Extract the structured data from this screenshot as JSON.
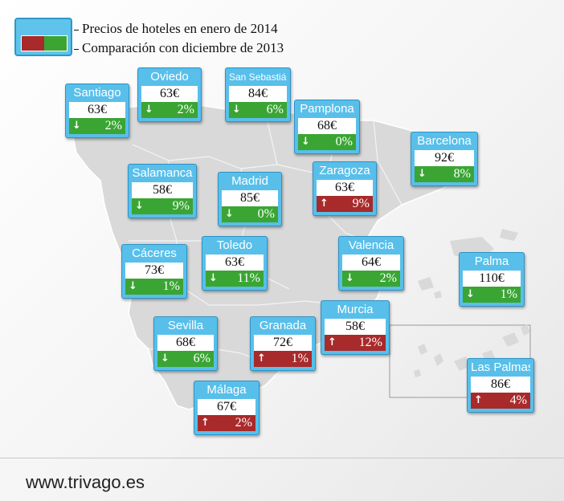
{
  "legend": {
    "line1": "Precios de hoteles en enero de 2014",
    "line2": "Comparación con diciembre de 2013",
    "colors": {
      "up": "#a82a2a",
      "down": "#3aa533"
    }
  },
  "cities": [
    {
      "name": "Santiago",
      "price": "63€",
      "direction": "down",
      "change": "2%"
    },
    {
      "name": "Oviedo",
      "price": "63€",
      "direction": "down",
      "change": "2%"
    },
    {
      "name": "San Sebastián",
      "price": "84€",
      "direction": "down",
      "change": "6%"
    },
    {
      "name": "Pamplona",
      "price": "68€",
      "direction": "down",
      "change": "0%"
    },
    {
      "name": "Barcelona",
      "price": "92€",
      "direction": "down",
      "change": "8%"
    },
    {
      "name": "Salamanca",
      "price": "58€",
      "direction": "down",
      "change": "9%"
    },
    {
      "name": "Madrid",
      "price": "85€",
      "direction": "down",
      "change": "0%"
    },
    {
      "name": "Zaragoza",
      "price": "63€",
      "direction": "up",
      "change": "9%"
    },
    {
      "name": "Cáceres",
      "price": "73€",
      "direction": "down",
      "change": "1%"
    },
    {
      "name": "Toledo",
      "price": "63€",
      "direction": "down",
      "change": "11%"
    },
    {
      "name": "Valencia",
      "price": "64€",
      "direction": "down",
      "change": "2%"
    },
    {
      "name": "Palma",
      "price": "110€",
      "direction": "down",
      "change": "1%"
    },
    {
      "name": "Sevilla",
      "price": "68€",
      "direction": "down",
      "change": "6%"
    },
    {
      "name": "Granada",
      "price": "72€",
      "direction": "up",
      "change": "1%"
    },
    {
      "name": "Murcia",
      "price": "58€",
      "direction": "up",
      "change": "12%"
    },
    {
      "name": "Las Palmas",
      "price": "86€",
      "direction": "up",
      "change": "4%"
    },
    {
      "name": "Málaga",
      "price": "67€",
      "direction": "up",
      "change": "2%"
    }
  ],
  "footer": {
    "url": "www.trivago.es"
  }
}
